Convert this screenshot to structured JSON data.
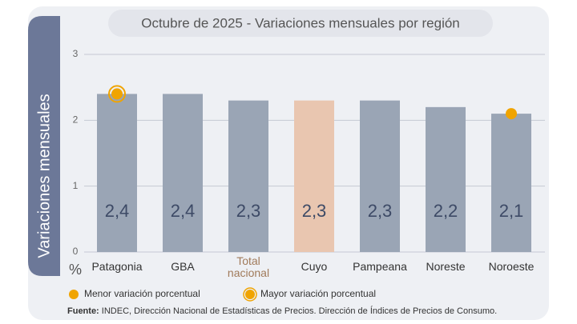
{
  "chart_data": {
    "type": "bar",
    "title": "Octubre de 2025 - Variaciones mensuales por región",
    "ylabel": "Variaciones mensuales",
    "yunit": "%",
    "categories": [
      "Patagonia",
      "GBA",
      "Total nacional",
      "Cuyo",
      "Pampeana",
      "Noreste",
      "Noroeste"
    ],
    "values": [
      2.4,
      2.4,
      2.3,
      2.3,
      2.3,
      2.2,
      2.1
    ],
    "value_labels": [
      "2,4",
      "2,4",
      "2,3",
      "2,3",
      "2,3",
      "2,2",
      "2,1"
    ],
    "colors": [
      "#9aa5b5",
      "#9aa5b5",
      "#9aa5b5",
      "#e9c6b0",
      "#9aa5b5",
      "#9aa5b5",
      "#9aa5b5"
    ],
    "label_colors": [
      "#333333",
      "#333333",
      "#a07a5a",
      "#333333",
      "#333333",
      "#333333",
      "#333333"
    ],
    "ylim": [
      0,
      3
    ],
    "yticks": [
      0,
      1,
      2,
      3
    ],
    "grid": true,
    "legend": [
      {
        "name": "Menor variación porcentual",
        "marker": "min",
        "color": "#f0a400"
      },
      {
        "name": "Mayor variación porcentual",
        "marker": "max",
        "color": "#f0a400"
      }
    ],
    "source": {
      "label": "Fuente:",
      "text": "INDEC, Dirección Nacional de Estadísticas de Precios. Dirección de Índices de Precios de Consumo."
    }
  }
}
